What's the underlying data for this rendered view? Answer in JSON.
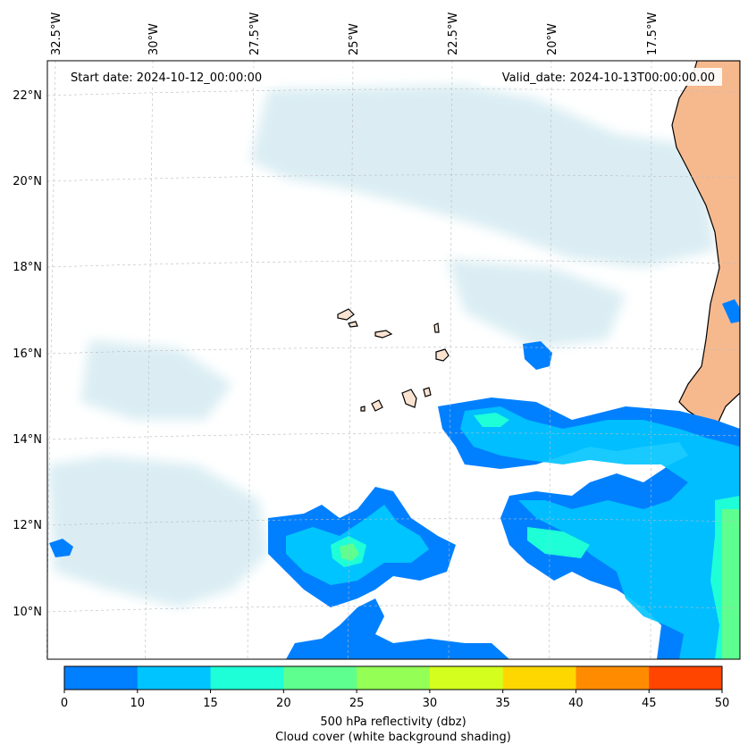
{
  "header": {
    "start_date": "Start date: 2024-10-12_00:00:00",
    "valid_date": "Valid_date: 2024-10-13T00:00:00.00"
  },
  "axes": {
    "lon_labels": [
      "32.5°W",
      "30°W",
      "27.5°W",
      "25°W",
      "22.5°W",
      "20°W",
      "17.5°W"
    ],
    "lat_labels": [
      "22°N",
      "20°N",
      "18°N",
      "16°N",
      "14°N",
      "12°N",
      "10°N"
    ]
  },
  "colorbar": {
    "ticks": [
      "0",
      "10",
      "15",
      "20",
      "25",
      "30",
      "35",
      "40",
      "45",
      "50"
    ],
    "colors": [
      "#0080ff",
      "#00c4ff",
      "#1effd8",
      "#5fff8f",
      "#94ff55",
      "#d4ff1e",
      "#ffd700",
      "#ff8c00",
      "#ff4500"
    ],
    "label_line1": "500 hPa reflectivity (dbz)",
    "label_line2": "Cloud cover (white background shading)"
  },
  "map": {
    "land_color": "#f6b98e",
    "island_color": "#fbe3d2",
    "cloud_color": "#cfe8f0",
    "coast_color": "#000000"
  }
}
